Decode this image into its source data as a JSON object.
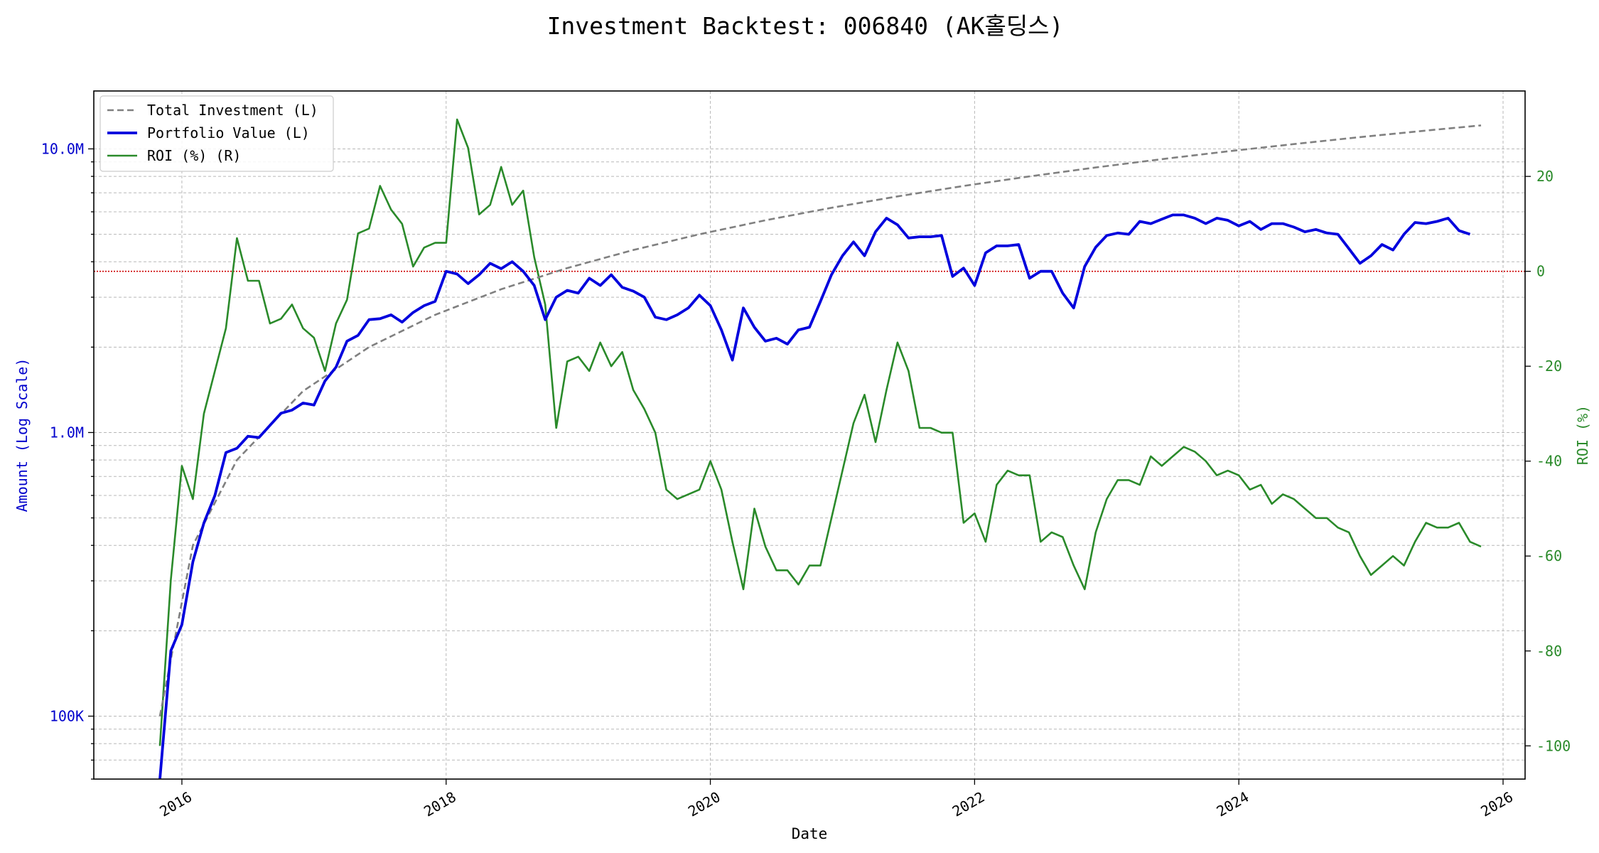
{
  "chart_data": {
    "type": "line",
    "title": "Investment Backtest: 006840 (AK홀딩스)",
    "xlabel": "Date",
    "ylabel_left": "Amount (Log Scale)",
    "ylabel_right": "ROI (%)",
    "left_scale": "log",
    "left_ylim": [
      60000,
      16000000
    ],
    "right_ylim": [
      -107,
      38
    ],
    "x_range": [
      "2015-05",
      "2026-03"
    ],
    "x_ticks": [
      "2016",
      "2018",
      "2020",
      "2022",
      "2024",
      "2026"
    ],
    "left_ticks": [
      {
        "value": 100000,
        "label": "100K"
      },
      {
        "value": 1000000,
        "label": "1.0M"
      },
      {
        "value": 10000000,
        "label": "10.0M"
      }
    ],
    "right_ticks": [
      20,
      0,
      -20,
      -40,
      -60,
      -80,
      -100
    ],
    "grid": true,
    "legend_position": "top-left",
    "zero_line": {
      "axis": "right",
      "value": 0,
      "color": "#cc0000",
      "style": "dotted"
    },
    "colors": {
      "total_investment": "#808080",
      "portfolio_value": "#0000dd",
      "roi": "#2a8a2a",
      "left_axis": "#0000cc",
      "right_axis": "#2a8a2a"
    },
    "legend": [
      {
        "label": "Total Investment (L)",
        "series": "total_investment"
      },
      {
        "label": "Portfolio Value (L)",
        "series": "portfolio_value"
      },
      {
        "label": "ROI (%) (R)",
        "series": "roi"
      }
    ],
    "series": [
      {
        "key": "total_investment",
        "name": "Total Investment (L)",
        "axis": "left",
        "style": "dashed",
        "points": [
          [
            "2015-11",
            100000
          ],
          [
            "2016-02",
            400000
          ],
          [
            "2016-06",
            800000
          ],
          [
            "2016-12",
            1400000
          ],
          [
            "2017-06",
            2000000
          ],
          [
            "2017-12",
            2600000
          ],
          [
            "2018-06",
            3200000
          ],
          [
            "2018-12",
            3800000
          ],
          [
            "2019-06",
            4400000
          ],
          [
            "2019-12",
            5000000
          ],
          [
            "2020-06",
            5600000
          ],
          [
            "2020-12",
            6200000
          ],
          [
            "2021-06",
            6800000
          ],
          [
            "2021-12",
            7400000
          ],
          [
            "2022-06",
            8000000
          ],
          [
            "2022-12",
            8600000
          ],
          [
            "2023-06",
            9200000
          ],
          [
            "2023-12",
            9800000
          ],
          [
            "2024-06",
            10400000
          ],
          [
            "2024-12",
            11000000
          ],
          [
            "2025-06",
            11600000
          ],
          [
            "2025-11",
            12100000
          ]
        ]
      },
      {
        "key": "portfolio_value",
        "name": "Portfolio Value (L)",
        "axis": "left",
        "style": "solid",
        "points": [
          [
            "2015-11",
            60000
          ],
          [
            "2015-12",
            170000
          ],
          [
            "2016-01",
            210000
          ],
          [
            "2016-02",
            350000
          ],
          [
            "2016-03",
            480000
          ],
          [
            "2016-04",
            600000
          ],
          [
            "2016-05",
            850000
          ],
          [
            "2016-06",
            880000
          ],
          [
            "2016-07",
            970000
          ],
          [
            "2016-08",
            960000
          ],
          [
            "2016-09",
            1060000
          ],
          [
            "2016-10",
            1170000
          ],
          [
            "2016-11",
            1200000
          ],
          [
            "2016-12",
            1270000
          ],
          [
            "2017-01",
            1250000
          ],
          [
            "2017-02",
            1520000
          ],
          [
            "2017-03",
            1700000
          ],
          [
            "2017-04",
            2100000
          ],
          [
            "2017-05",
            2200000
          ],
          [
            "2017-06",
            2500000
          ],
          [
            "2017-07",
            2520000
          ],
          [
            "2017-08",
            2600000
          ],
          [
            "2017-09",
            2450000
          ],
          [
            "2017-10",
            2650000
          ],
          [
            "2017-11",
            2800000
          ],
          [
            "2017-12",
            2900000
          ],
          [
            "2018-01",
            3700000
          ],
          [
            "2018-02",
            3620000
          ],
          [
            "2018-03",
            3350000
          ],
          [
            "2018-04",
            3600000
          ],
          [
            "2018-05",
            3950000
          ],
          [
            "2018-06",
            3780000
          ],
          [
            "2018-07",
            4000000
          ],
          [
            "2018-08",
            3700000
          ],
          [
            "2018-09",
            3300000
          ],
          [
            "2018-10",
            2500000
          ],
          [
            "2018-11",
            3000000
          ],
          [
            "2018-12",
            3170000
          ],
          [
            "2019-01",
            3100000
          ],
          [
            "2019-02",
            3500000
          ],
          [
            "2019-03",
            3300000
          ],
          [
            "2019-04",
            3600000
          ],
          [
            "2019-05",
            3250000
          ],
          [
            "2019-06",
            3150000
          ],
          [
            "2019-07",
            3000000
          ],
          [
            "2019-08",
            2550000
          ],
          [
            "2019-09",
            2500000
          ],
          [
            "2019-10",
            2600000
          ],
          [
            "2019-11",
            2750000
          ],
          [
            "2019-12",
            3050000
          ],
          [
            "2020-01",
            2800000
          ],
          [
            "2020-02",
            2300000
          ],
          [
            "2020-03",
            1800000
          ],
          [
            "2020-04",
            2750000
          ],
          [
            "2020-05",
            2350000
          ],
          [
            "2020-06",
            2100000
          ],
          [
            "2020-07",
            2150000
          ],
          [
            "2020-08",
            2050000
          ],
          [
            "2020-09",
            2300000
          ],
          [
            "2020-10",
            2350000
          ],
          [
            "2020-11",
            2900000
          ],
          [
            "2020-12",
            3600000
          ],
          [
            "2021-01",
            4200000
          ],
          [
            "2021-02",
            4700000
          ],
          [
            "2021-03",
            4200000
          ],
          [
            "2021-04",
            5100000
          ],
          [
            "2021-05",
            5700000
          ],
          [
            "2021-06",
            5400000
          ],
          [
            "2021-07",
            4850000
          ],
          [
            "2021-08",
            4900000
          ],
          [
            "2021-09",
            4900000
          ],
          [
            "2021-10",
            4950000
          ],
          [
            "2021-11",
            3550000
          ],
          [
            "2021-12",
            3800000
          ],
          [
            "2022-01",
            3300000
          ],
          [
            "2022-02",
            4300000
          ],
          [
            "2022-03",
            4550000
          ],
          [
            "2022-04",
            4550000
          ],
          [
            "2022-05",
            4600000
          ],
          [
            "2022-06",
            3500000
          ],
          [
            "2022-07",
            3700000
          ],
          [
            "2022-08",
            3700000
          ],
          [
            "2022-09",
            3100000
          ],
          [
            "2022-10",
            2750000
          ],
          [
            "2022-11",
            3850000
          ],
          [
            "2022-12",
            4500000
          ],
          [
            "2023-01",
            4950000
          ],
          [
            "2023-02",
            5050000
          ],
          [
            "2023-03",
            5000000
          ],
          [
            "2023-04",
            5550000
          ],
          [
            "2023-05",
            5450000
          ],
          [
            "2023-06",
            5650000
          ],
          [
            "2023-07",
            5850000
          ],
          [
            "2023-08",
            5850000
          ],
          [
            "2023-09",
            5700000
          ],
          [
            "2023-10",
            5450000
          ],
          [
            "2023-11",
            5700000
          ],
          [
            "2023-12",
            5600000
          ],
          [
            "2024-01",
            5350000
          ],
          [
            "2024-02",
            5550000
          ],
          [
            "2024-03",
            5200000
          ],
          [
            "2024-04",
            5450000
          ],
          [
            "2024-05",
            5450000
          ],
          [
            "2024-06",
            5300000
          ],
          [
            "2024-07",
            5100000
          ],
          [
            "2024-08",
            5200000
          ],
          [
            "2024-09",
            5050000
          ],
          [
            "2024-10",
            5000000
          ],
          [
            "2024-11",
            4450000
          ],
          [
            "2024-12",
            3950000
          ],
          [
            "2025-01",
            4200000
          ],
          [
            "2025-02",
            4600000
          ],
          [
            "2025-03",
            4400000
          ],
          [
            "2025-04",
            5000000
          ],
          [
            "2025-05",
            5500000
          ],
          [
            "2025-06",
            5450000
          ],
          [
            "2025-07",
            5550000
          ],
          [
            "2025-08",
            5700000
          ],
          [
            "2025-09",
            5150000
          ],
          [
            "2025-10",
            5000000
          ]
        ]
      },
      {
        "key": "roi",
        "name": "ROI (%) (R)",
        "axis": "right",
        "style": "solid",
        "points": [
          [
            "2015-11",
            -100
          ],
          [
            "2015-12",
            -65
          ],
          [
            "2016-01",
            -41
          ],
          [
            "2016-02",
            -48
          ],
          [
            "2016-03",
            -30
          ],
          [
            "2016-04",
            -21
          ],
          [
            "2016-05",
            -12
          ],
          [
            "2016-06",
            7
          ],
          [
            "2016-07",
            -2
          ],
          [
            "2016-08",
            -2
          ],
          [
            "2016-09",
            -11
          ],
          [
            "2016-10",
            -10
          ],
          [
            "2016-11",
            -7
          ],
          [
            "2016-12",
            -12
          ],
          [
            "2017-01",
            -14
          ],
          [
            "2017-02",
            -21
          ],
          [
            "2017-03",
            -11
          ],
          [
            "2017-04",
            -6
          ],
          [
            "2017-05",
            8
          ],
          [
            "2017-06",
            9
          ],
          [
            "2017-07",
            18
          ],
          [
            "2017-08",
            13
          ],
          [
            "2017-09",
            10
          ],
          [
            "2017-10",
            1
          ],
          [
            "2017-11",
            5
          ],
          [
            "2017-12",
            6
          ],
          [
            "2018-01",
            6
          ],
          [
            "2018-02",
            32
          ],
          [
            "2018-03",
            26
          ],
          [
            "2018-04",
            12
          ],
          [
            "2018-05",
            14
          ],
          [
            "2018-06",
            22
          ],
          [
            "2018-07",
            14
          ],
          [
            "2018-08",
            17
          ],
          [
            "2018-09",
            3
          ],
          [
            "2018-10",
            -7
          ],
          [
            "2018-11",
            -33
          ],
          [
            "2018-12",
            -19
          ],
          [
            "2019-01",
            -18
          ],
          [
            "2019-02",
            -21
          ],
          [
            "2019-03",
            -15
          ],
          [
            "2019-04",
            -20
          ],
          [
            "2019-05",
            -17
          ],
          [
            "2019-06",
            -25
          ],
          [
            "2019-07",
            -29
          ],
          [
            "2019-08",
            -34
          ],
          [
            "2019-09",
            -46
          ],
          [
            "2019-10",
            -48
          ],
          [
            "2019-11",
            -47
          ],
          [
            "2019-12",
            -46
          ],
          [
            "2020-01",
            -40
          ],
          [
            "2020-02",
            -46
          ],
          [
            "2020-03",
            -57
          ],
          [
            "2020-04",
            -67
          ],
          [
            "2020-05",
            -50
          ],
          [
            "2020-06",
            -58
          ],
          [
            "2020-07",
            -63
          ],
          [
            "2020-08",
            -63
          ],
          [
            "2020-09",
            -66
          ],
          [
            "2020-10",
            -62
          ],
          [
            "2020-11",
            -62
          ],
          [
            "2020-12",
            -52
          ],
          [
            "2021-01",
            -42
          ],
          [
            "2021-02",
            -32
          ],
          [
            "2021-03",
            -26
          ],
          [
            "2021-04",
            -36
          ],
          [
            "2021-05",
            -25
          ],
          [
            "2021-06",
            -15
          ],
          [
            "2021-07",
            -21
          ],
          [
            "2021-08",
            -33
          ],
          [
            "2021-09",
            -33
          ],
          [
            "2021-10",
            -34
          ],
          [
            "2021-11",
            -34
          ],
          [
            "2021-12",
            -53
          ],
          [
            "2022-01",
            -51
          ],
          [
            "2022-02",
            -57
          ],
          [
            "2022-03",
            -45
          ],
          [
            "2022-04",
            -42
          ],
          [
            "2022-05",
            -43
          ],
          [
            "2022-06",
            -43
          ],
          [
            "2022-07",
            -57
          ],
          [
            "2022-08",
            -55
          ],
          [
            "2022-09",
            -56
          ],
          [
            "2022-10",
            -62
          ],
          [
            "2022-11",
            -67
          ],
          [
            "2022-12",
            -55
          ],
          [
            "2023-01",
            -48
          ],
          [
            "2023-02",
            -44
          ],
          [
            "2023-03",
            -44
          ],
          [
            "2023-04",
            -45
          ],
          [
            "2023-05",
            -39
          ],
          [
            "2023-06",
            -41
          ],
          [
            "2023-07",
            -39
          ],
          [
            "2023-08",
            -37
          ],
          [
            "2023-09",
            -38
          ],
          [
            "2023-10",
            -40
          ],
          [
            "2023-11",
            -43
          ],
          [
            "2023-12",
            -42
          ],
          [
            "2024-01",
            -43
          ],
          [
            "2024-02",
            -46
          ],
          [
            "2024-03",
            -45
          ],
          [
            "2024-04",
            -49
          ],
          [
            "2024-05",
            -47
          ],
          [
            "2024-06",
            -48
          ],
          [
            "2024-07",
            -50
          ],
          [
            "2024-08",
            -52
          ],
          [
            "2024-09",
            -52
          ],
          [
            "2024-10",
            -54
          ],
          [
            "2024-11",
            -55
          ],
          [
            "2024-12",
            -60
          ],
          [
            "2025-01",
            -64
          ],
          [
            "2025-02",
            -62
          ],
          [
            "2025-03",
            -60
          ],
          [
            "2025-04",
            -62
          ],
          [
            "2025-05",
            -57
          ],
          [
            "2025-06",
            -53
          ],
          [
            "2025-07",
            -54
          ],
          [
            "2025-08",
            -54
          ],
          [
            "2025-09",
            -53
          ],
          [
            "2025-10",
            -57
          ],
          [
            "2025-11",
            -58
          ]
        ]
      }
    ]
  }
}
